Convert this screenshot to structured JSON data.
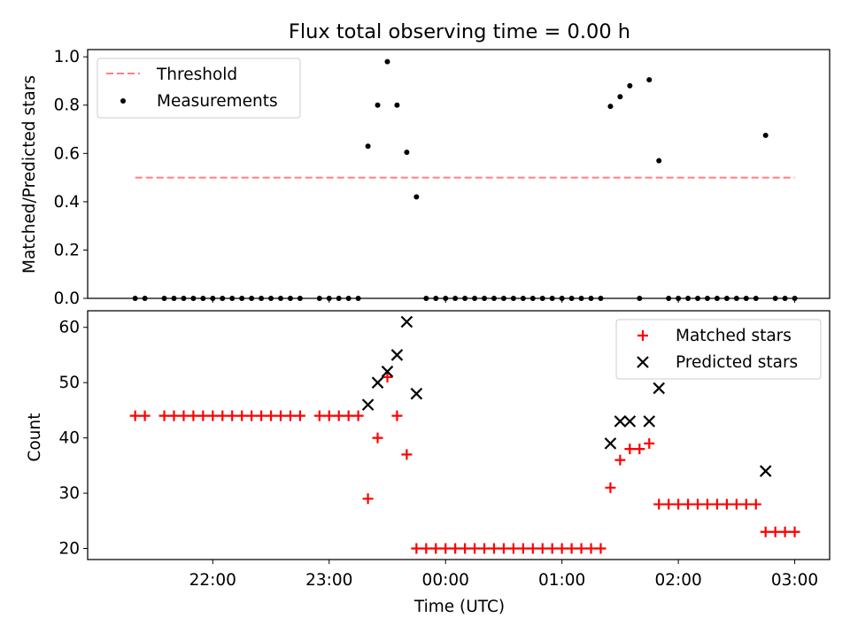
{
  "chart_data": [
    {
      "type": "scatter",
      "title": "Flux total observing time = 0.00 h",
      "xlabel": "",
      "ylabel": "Matched/Predicted stars",
      "ylim": [
        0,
        1.03
      ],
      "yticks": [
        "0.0",
        "0.2",
        "0.4",
        "0.6",
        "0.8",
        "1.0"
      ],
      "legend_position": "top-left",
      "threshold": {
        "name": "Threshold",
        "value": 0.5,
        "x_start": "21:20",
        "x_end": "03:00",
        "color": "#ff7f7f"
      },
      "series": [
        {
          "name": "Measurements",
          "color": "#000000",
          "x": [
            "21:20",
            "21:25",
            "21:35",
            "21:40",
            "21:45",
            "21:50",
            "21:55",
            "22:00",
            "22:05",
            "22:10",
            "22:15",
            "22:20",
            "22:25",
            "22:30",
            "22:35",
            "22:40",
            "22:45",
            "22:55",
            "23:00",
            "23:05",
            "23:10",
            "23:15",
            "23:20",
            "23:25",
            "23:30",
            "23:35",
            "23:40",
            "23:45",
            "23:50",
            "23:55",
            "00:00",
            "00:05",
            "00:10",
            "00:15",
            "00:20",
            "00:25",
            "00:30",
            "00:35",
            "00:40",
            "00:45",
            "00:50",
            "00:55",
            "01:00",
            "01:05",
            "01:10",
            "01:15",
            "01:20",
            "01:25",
            "01:30",
            "01:35",
            "01:40",
            "01:45",
            "01:50",
            "01:55",
            "02:00",
            "02:05",
            "02:10",
            "02:15",
            "02:20",
            "02:25",
            "02:30",
            "02:35",
            "02:40",
            "02:45",
            "02:50",
            "02:55",
            "03:00"
          ],
          "y": [
            0,
            0,
            0,
            0,
            0,
            0,
            0,
            0,
            0,
            0,
            0,
            0,
            0,
            0,
            0,
            0,
            0,
            0,
            0,
            0,
            0,
            0,
            0.63,
            0.8,
            0.98,
            0.8,
            0.605,
            0.42,
            0,
            0,
            0,
            0,
            0,
            0,
            0,
            0,
            0,
            0,
            0,
            0,
            0,
            0,
            0,
            0,
            0,
            0,
            0,
            0.795,
            0.835,
            0.88,
            0,
            0.905,
            0.57,
            0,
            0,
            0,
            0,
            0,
            0,
            0,
            0,
            0,
            0,
            0.675,
            0,
            0,
            0
          ]
        }
      ]
    },
    {
      "type": "scatter",
      "title": "",
      "xlabel": "Time (UTC)",
      "ylabel": "Count",
      "ylim": [
        18,
        63
      ],
      "yticks": [
        "20",
        "30",
        "40",
        "50",
        "60"
      ],
      "xticks": [
        "22:00",
        "23:00",
        "00:00",
        "01:00",
        "02:00",
        "03:00"
      ],
      "legend_position": "top-right",
      "series": [
        {
          "name": "Matched stars",
          "color": "#ff0000",
          "marker": "plus",
          "x": [
            "21:20",
            "21:25",
            "21:35",
            "21:40",
            "21:45",
            "21:50",
            "21:55",
            "22:00",
            "22:05",
            "22:10",
            "22:15",
            "22:20",
            "22:25",
            "22:30",
            "22:35",
            "22:40",
            "22:45",
            "22:55",
            "23:00",
            "23:05",
            "23:10",
            "23:15",
            "23:20",
            "23:25",
            "23:30",
            "23:35",
            "23:40",
            "23:45",
            "23:50",
            "23:55",
            "00:00",
            "00:05",
            "00:10",
            "00:15",
            "00:20",
            "00:25",
            "00:30",
            "00:35",
            "00:40",
            "00:45",
            "00:50",
            "00:55",
            "01:00",
            "01:05",
            "01:10",
            "01:15",
            "01:20",
            "01:25",
            "01:30",
            "01:35",
            "01:40",
            "01:45",
            "01:50",
            "01:55",
            "02:00",
            "02:05",
            "02:10",
            "02:15",
            "02:20",
            "02:25",
            "02:30",
            "02:35",
            "02:40",
            "02:45",
            "02:50",
            "02:55",
            "03:00"
          ],
          "y": [
            44,
            44,
            44,
            44,
            44,
            44,
            44,
            44,
            44,
            44,
            44,
            44,
            44,
            44,
            44,
            44,
            44,
            44,
            44,
            44,
            44,
            44,
            29,
            40,
            51,
            44,
            37,
            20,
            20,
            20,
            20,
            20,
            20,
            20,
            20,
            20,
            20,
            20,
            20,
            20,
            20,
            20,
            20,
            20,
            20,
            20,
            20,
            31,
            36,
            38,
            38,
            39,
            28,
            28,
            28,
            28,
            28,
            28,
            28,
            28,
            28,
            28,
            28,
            23,
            23,
            23,
            23
          ]
        },
        {
          "name": "Predicted stars",
          "color": "#000000",
          "marker": "x",
          "x": [
            "23:20",
            "23:25",
            "23:30",
            "23:35",
            "23:40",
            "23:45",
            "01:25",
            "01:30",
            "01:35",
            "01:45",
            "01:50",
            "02:45"
          ],
          "y": [
            46,
            50,
            52,
            55,
            61,
            48,
            39,
            43,
            43,
            43,
            49,
            34
          ]
        }
      ]
    }
  ]
}
